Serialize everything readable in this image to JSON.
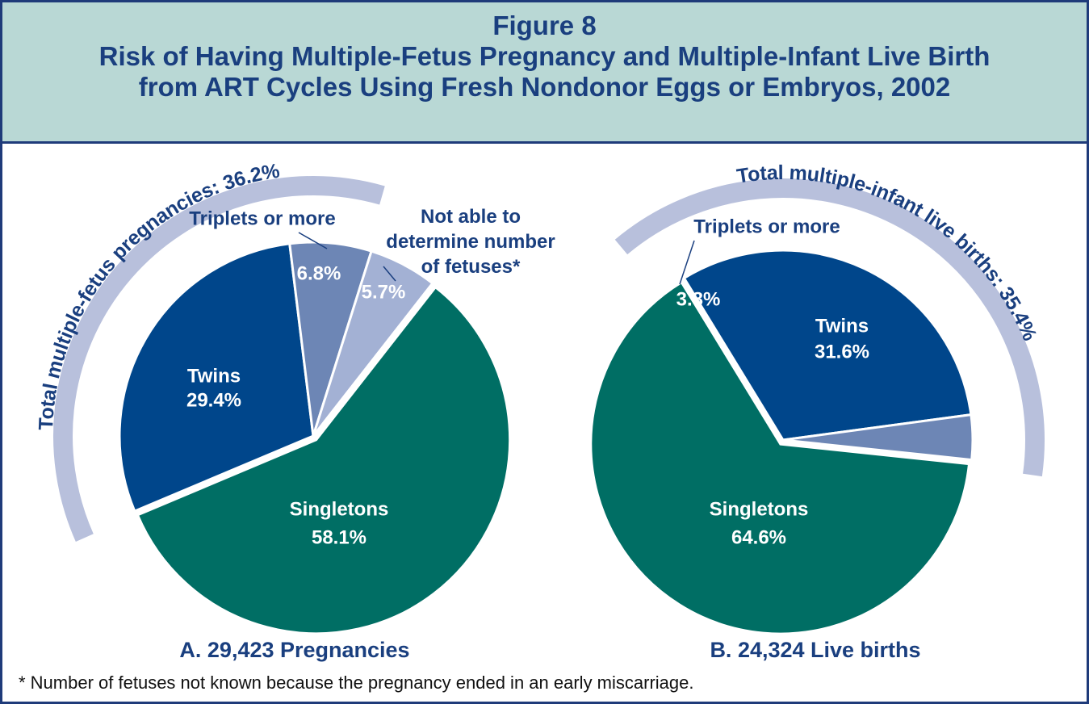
{
  "header": {
    "figure": "Figure 8",
    "title": [
      "Risk of Having Multiple-Fetus Pregnancy and Multiple-Infant Live Birth",
      "from ART Cycles Using Fresh Nondonor Eggs or Embryos, 2002"
    ]
  },
  "chart_data": [
    {
      "type": "pie",
      "caption": "A. 29,423 Pregnancies",
      "annotation": "Total multiple-fetus pregnancies: 36.2%",
      "categories": [
        "Singletons",
        "Twins",
        "Triplets or more",
        "Not able to determine number of fetuses*"
      ],
      "values": [
        58.1,
        29.4,
        6.8,
        5.7
      ],
      "value_labels": [
        "58.1%",
        "29.4%",
        "6.8%",
        "5.7%"
      ],
      "colors": [
        "#006e64",
        "#00468b",
        "#6d86b5",
        "#a3b1d4"
      ]
    },
    {
      "type": "pie",
      "caption": "B. 24,324 Live births",
      "annotation": "Total multiple-infant live births: 35.4%",
      "categories": [
        "Singletons",
        "Twins",
        "Triplets or more"
      ],
      "values": [
        64.6,
        31.6,
        3.8
      ],
      "value_labels": [
        "64.6%",
        "31.6%",
        "3.8%"
      ],
      "colors": [
        "#006e64",
        "#00468b",
        "#6d86b5"
      ]
    }
  ],
  "footnote": "* Number of fetuses not known because the pregnancy ended in an early miscarriage."
}
